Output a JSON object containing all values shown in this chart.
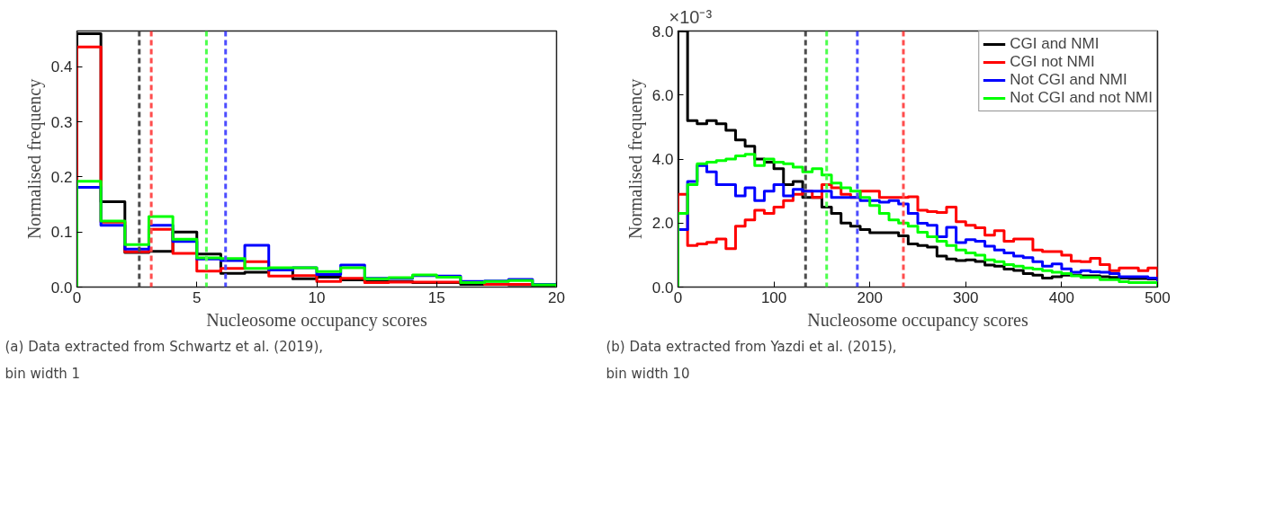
{
  "chart_data": [
    {
      "type": "histogram",
      "xlabel": "Nucleosome occupancy scores",
      "ylabel": "Normalised frequency",
      "bins": [
        0,
        1,
        2,
        3,
        4,
        5,
        6,
        7,
        8,
        9,
        10,
        11,
        12,
        13,
        14,
        15,
        16,
        17,
        18,
        19,
        20
      ],
      "series": [
        {
          "color": "#000000",
          "values": [
            0.46,
            0.155,
            0.063,
            0.065,
            0.1,
            0.06,
            0.025,
            0.027,
            0.033,
            0.015,
            0.018,
            0.013,
            0.01,
            0.01,
            0.008,
            0.008,
            0.005,
            0.005,
            0.004,
            0.003
          ]
        },
        {
          "color": "#ff0000",
          "values": [
            0.436,
            0.118,
            0.064,
            0.105,
            0.061,
            0.029,
            0.034,
            0.046,
            0.02,
            0.021,
            0.01,
            0.016,
            0.008,
            0.009,
            0.009,
            0.009,
            0.009,
            0.005,
            0.005,
            0.005
          ]
        },
        {
          "color": "#0000ff",
          "values": [
            0.181,
            0.112,
            0.069,
            0.112,
            0.083,
            0.051,
            0.048,
            0.076,
            0.031,
            0.035,
            0.023,
            0.04,
            0.016,
            0.016,
            0.021,
            0.02,
            0.01,
            0.011,
            0.014,
            0.005
          ]
        },
        {
          "color": "#00ff00",
          "values": [
            0.192,
            0.12,
            0.077,
            0.128,
            0.087,
            0.053,
            0.052,
            0.034,
            0.035,
            0.035,
            0.028,
            0.035,
            0.015,
            0.017,
            0.022,
            0.018,
            0.008,
            0.01,
            0.012,
            0.004
          ]
        }
      ],
      "xlim": [
        0,
        20
      ],
      "ylim": [
        0,
        0.465
      ],
      "xticks": [
        0,
        5,
        10,
        15,
        20
      ],
      "yticks": [
        {
          "value": 0,
          "label": "0.0"
        },
        0.1,
        0.2,
        0.3,
        0.4
      ],
      "ref_lines": [
        {
          "axis": "x",
          "value": 2.6,
          "color": "#4d4d4d",
          "line_style": "dashed"
        },
        {
          "axis": "x",
          "value": 3.1,
          "color": "#ff4d4d",
          "line_style": "dashed"
        },
        {
          "axis": "x",
          "value": 5.4,
          "color": "#4dff4d",
          "line_style": "dashed"
        },
        {
          "axis": "x",
          "value": 6.2,
          "color": "#4d4dff",
          "line_style": "dashed"
        }
      ],
      "grid": false,
      "legend": false,
      "annotations": [
        "(a) Data extracted from  Schwartz et al. (2019),",
        "bin width 1"
      ]
    },
    {
      "type": "histogram",
      "xlabel": "Nucleosome occupancy scores",
      "ylabel": "Normalised frequency",
      "bins": [
        0,
        10,
        20,
        30,
        40,
        50,
        60,
        70,
        80,
        90,
        100,
        110,
        120,
        130,
        140,
        150,
        160,
        170,
        180,
        190,
        200,
        210,
        220,
        230,
        240,
        250,
        260,
        270,
        280,
        290,
        300,
        310,
        320,
        330,
        340,
        350,
        360,
        370,
        380,
        390,
        400,
        410,
        420,
        430,
        440,
        450,
        460,
        470,
        480,
        490,
        500
      ],
      "series": [
        {
          "name": "CGI and NMI",
          "color": "#000000",
          "values": [
            8.0,
            5.2,
            5.1,
            5.2,
            5.1,
            4.9,
            4.6,
            4.4,
            4.0,
            3.9,
            3.7,
            3.2,
            3.3,
            2.8,
            2.8,
            2.5,
            2.3,
            2.0,
            1.9,
            1.8,
            1.7,
            1.7,
            1.7,
            1.6,
            1.35,
            1.3,
            1.25,
            0.97,
            0.88,
            0.83,
            0.85,
            0.8,
            0.69,
            0.65,
            0.56,
            0.52,
            0.42,
            0.37,
            0.28,
            0.32,
            0.37,
            0.37,
            0.35,
            0.35,
            0.32,
            0.3,
            0.28,
            0.27,
            0.27,
            0.25
          ]
        },
        {
          "name": "CGI not NMI",
          "color": "#ff0000",
          "values": [
            2.9,
            1.3,
            1.35,
            1.4,
            1.5,
            1.2,
            1.9,
            2.1,
            2.4,
            2.3,
            2.5,
            2.7,
            2.9,
            3.0,
            2.8,
            3.2,
            3.1,
            2.9,
            2.8,
            3.0,
            3.0,
            2.8,
            2.8,
            2.8,
            2.82,
            2.4,
            2.36,
            2.33,
            2.5,
            2.04,
            1.93,
            1.85,
            1.62,
            1.76,
            1.43,
            1.5,
            1.5,
            1.16,
            1.11,
            1.11,
            1.0,
            0.81,
            0.79,
            0.9,
            0.7,
            0.51,
            0.6,
            0.6,
            0.51,
            0.6
          ]
        },
        {
          "name": "Not CGI and NMI",
          "color": "#0000ff",
          "values": [
            1.8,
            3.3,
            3.8,
            3.6,
            3.2,
            3.2,
            2.85,
            3.1,
            2.7,
            3.0,
            3.2,
            2.85,
            3.05,
            3.0,
            3.0,
            3.0,
            2.8,
            2.8,
            2.8,
            2.7,
            2.7,
            2.65,
            2.7,
            2.6,
            2.3,
            1.99,
            1.93,
            1.57,
            1.87,
            1.39,
            1.48,
            1.43,
            1.28,
            1.16,
            1.07,
            0.97,
            0.92,
            0.79,
            0.65,
            0.72,
            0.57,
            0.46,
            0.51,
            0.48,
            0.46,
            0.42,
            0.32,
            0.32,
            0.32,
            0.28
          ]
        },
        {
          "name": "Not CGI and not NMI",
          "color": "#00ff00",
          "values": [
            2.3,
            3.2,
            3.85,
            3.9,
            3.95,
            4.0,
            4.1,
            4.15,
            3.8,
            4.0,
            3.9,
            3.85,
            3.75,
            3.6,
            3.7,
            3.5,
            3.25,
            3.1,
            3.0,
            2.8,
            2.55,
            2.3,
            2.1,
            2.0,
            1.9,
            1.71,
            1.57,
            1.43,
            1.3,
            1.16,
            1.07,
            1.0,
            0.85,
            0.79,
            0.7,
            0.65,
            0.6,
            0.56,
            0.51,
            0.46,
            0.42,
            0.35,
            0.3,
            0.3,
            0.23,
            0.23,
            0.17,
            0.14,
            0.14,
            0.14
          ]
        }
      ],
      "xlim": [
        0,
        500
      ],
      "ylim": [
        0,
        8
      ],
      "xticks": [
        0,
        100,
        200,
        300,
        400,
        500
      ],
      "yticks": [
        {
          "value": 0,
          "label": "0.0"
        },
        {
          "value": 2,
          "label": "2.0"
        },
        {
          "value": 4,
          "label": "4.0"
        },
        {
          "value": 6,
          "label": "6.0"
        },
        {
          "value": 8,
          "label": "8.0"
        }
      ],
      "ref_lines": [
        {
          "axis": "x",
          "value": 133,
          "color": "#4d4d4d",
          "line_style": "dashed"
        },
        {
          "axis": "x",
          "value": 155,
          "color": "#4dff4d",
          "line_style": "dashed"
        },
        {
          "axis": "x",
          "value": 187,
          "color": "#4d4dff",
          "line_style": "dashed"
        },
        {
          "axis": "x",
          "value": 235,
          "color": "#ff4d4d",
          "line_style": "dashed"
        }
      ],
      "grid": false,
      "legend": "top right",
      "annotations": [
        "×10⁻³",
        "(b) Data extracted from  Yazdi et al. (2015),",
        "bin width 10"
      ]
    }
  ]
}
